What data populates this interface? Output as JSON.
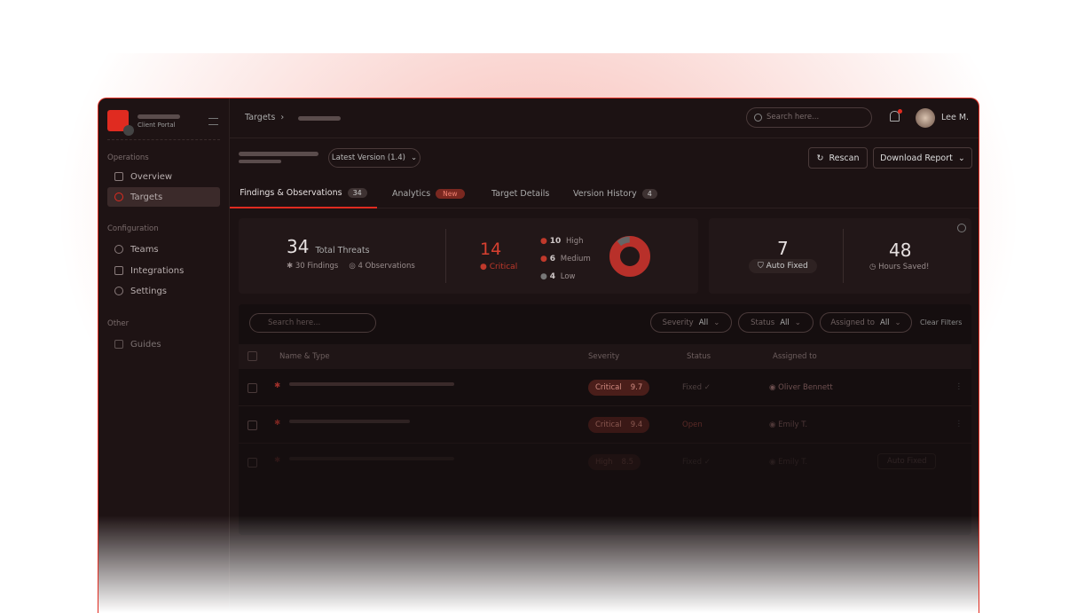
{
  "sidebar": {
    "subtitle": "Client Portal",
    "sections": [
      {
        "label": "Operations",
        "items": [
          "Overview",
          "Targets"
        ]
      },
      {
        "label": "Configuration",
        "items": [
          "Teams",
          "Integrations",
          "Settings"
        ]
      },
      {
        "label": "Other",
        "items": [
          "Guides"
        ]
      }
    ],
    "active": "Targets"
  },
  "header": {
    "breadcrumb_root": "Targets",
    "search_placeholder": "Search here...",
    "user_name": "Lee M."
  },
  "subheader": {
    "version_select": "Latest Version (1.4)",
    "rescan": "Rescan",
    "download": "Download Report"
  },
  "tabs": [
    {
      "label": "Findings & Observations",
      "badge": "34"
    },
    {
      "label": "Analytics",
      "badge": "New"
    },
    {
      "label": "Target Details"
    },
    {
      "label": "Version History",
      "badge": "4"
    }
  ],
  "stats": {
    "total": "34",
    "total_label": "Total Threats",
    "findings": "30 Findings",
    "observations": "4 Observations",
    "critical": "14",
    "critical_label": "Critical",
    "high": "10",
    "high_label": "High",
    "medium": "6",
    "medium_label": "Medium",
    "low": "4",
    "low_label": "Low",
    "auto_fixed": "7",
    "auto_fixed_label": "Auto Fixed",
    "hours": "48",
    "hours_label": "Hours Saved!"
  },
  "colors": {
    "accent": "#e02b20",
    "critical": "#c0392b",
    "low": "#777777"
  },
  "table": {
    "search_placeholder": "Search here...",
    "filters": [
      {
        "label": "Severity",
        "value": "All"
      },
      {
        "label": "Status",
        "value": "All"
      },
      {
        "label": "Assigned to",
        "value": "All"
      }
    ],
    "clear": "Clear Filters",
    "columns": [
      "Name & Type",
      "Severity",
      "Status",
      "Assigned to"
    ],
    "rows": [
      {
        "severity": "Critical",
        "score": "9.7",
        "status": "Fixed ✓",
        "assignee": "Oliver Bennett"
      },
      {
        "severity": "Critical",
        "score": "9.4",
        "status": "Open",
        "assignee": "Emily T."
      },
      {
        "severity": "High",
        "score": "8.5",
        "status": "Fixed ✓",
        "assignee": "Emily T.",
        "tag": "Auto Fixed"
      }
    ]
  }
}
